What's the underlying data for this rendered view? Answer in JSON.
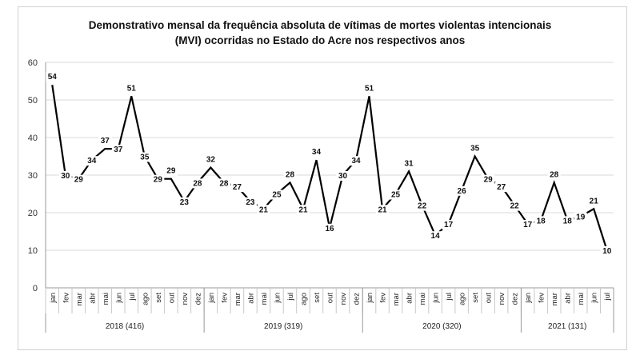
{
  "chart_data": {
    "type": "line",
    "title": "Demonstrativo  mensal da frequência absoluta de vítimas de mortes violentas intencionais",
    "subtitle": "(MVI) ocorridas no Estado do Acre nos respectivos anos",
    "ylim": [
      0,
      60
    ],
    "yticks": [
      0,
      10,
      20,
      30,
      40,
      50,
      60
    ],
    "grid": true,
    "line_color": "#000000",
    "grid_color": "#d9d9d9",
    "groups": [
      {
        "label": "2018 (416)",
        "months": [
          "jan",
          "fev",
          "mar",
          "abr",
          "mai",
          "jun",
          "jul",
          "ago",
          "set",
          "out",
          "nov",
          "dez"
        ],
        "values": [
          54,
          30,
          29,
          34,
          37,
          37,
          51,
          35,
          29,
          29,
          23,
          28
        ]
      },
      {
        "label": "2019 (319)",
        "months": [
          "jan",
          "fev",
          "mar",
          "abr",
          "mai",
          "jun",
          "jul",
          "ago",
          "set",
          "out",
          "nov",
          "dez"
        ],
        "values": [
          32,
          28,
          27,
          23,
          21,
          25,
          28,
          21,
          34,
          16,
          30,
          34
        ]
      },
      {
        "label": "2020 (320)",
        "months": [
          "jan",
          "fev",
          "mar",
          "abr",
          "mai",
          "jun",
          "jul",
          "ago",
          "set",
          "out",
          "nov",
          "dez"
        ],
        "values": [
          51,
          21,
          25,
          31,
          22,
          14,
          17,
          26,
          35,
          29,
          27,
          22
        ]
      },
      {
        "label": "2021 (131)",
        "months": [
          "jan",
          "fev",
          "mar",
          "abr",
          "mai",
          "jun",
          "jul"
        ],
        "values": [
          17,
          18,
          28,
          18,
          19,
          21,
          10
        ]
      }
    ]
  }
}
